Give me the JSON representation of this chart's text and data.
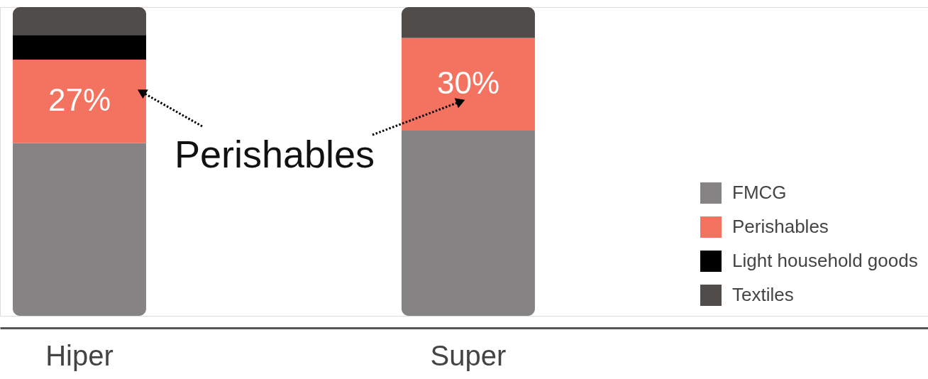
{
  "chart_data": {
    "type": "bar",
    "stacked": true,
    "categories": [
      "Hiper",
      "Super"
    ],
    "series": [
      {
        "name": "FMCG",
        "color": "#858383",
        "values": [
          56,
          60
        ]
      },
      {
        "name": "Perishables",
        "color": "#f47260",
        "values": [
          27,
          30
        ],
        "value_labels": [
          "27%",
          "30%"
        ]
      },
      {
        "name": "Light household goods",
        "color": "#000000",
        "values": [
          8,
          null
        ]
      },
      {
        "name": "Textiles",
        "color": "#504c4a",
        "values": [
          9,
          10
        ]
      }
    ],
    "legend": "bottom right",
    "tick_labels": "x",
    "annotations": [
      "Perishables"
    ]
  }
}
